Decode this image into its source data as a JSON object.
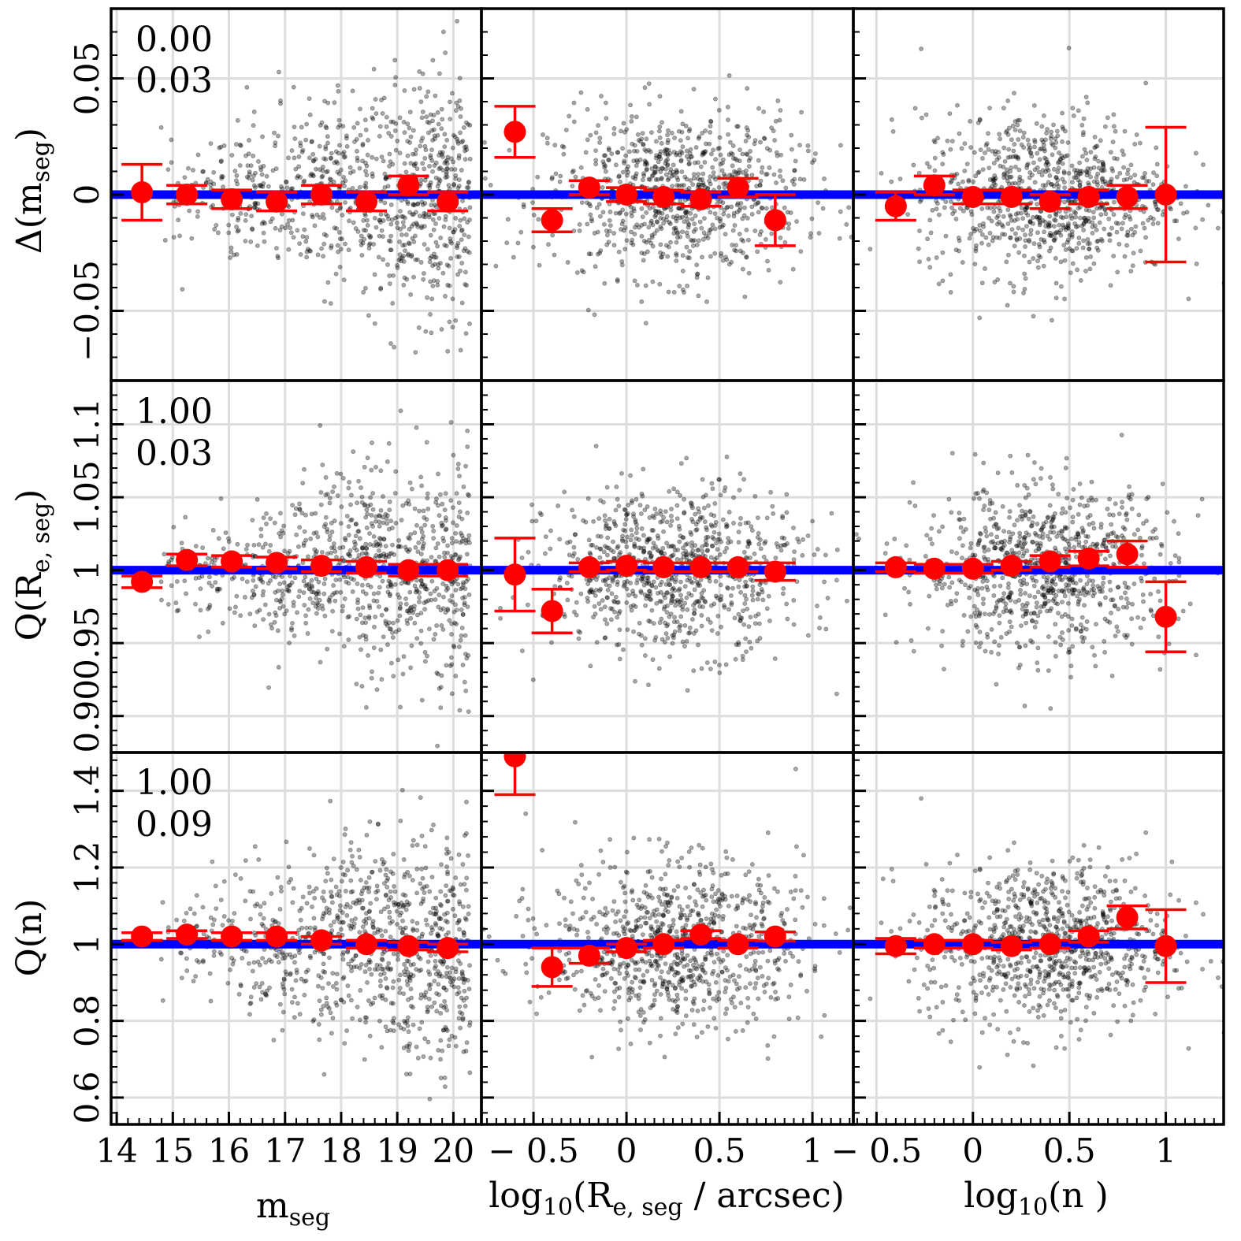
{
  "figure": {
    "panel_stats": [
      {
        "mean": "0.00",
        "sd": "0.03"
      },
      {
        "mean": "1.00",
        "sd": "0.03"
      },
      {
        "mean": "1.00",
        "sd": "0.09"
      }
    ],
    "x_axis_labels": [
      {
        "main": "m",
        "sub": "seg",
        "tail": ""
      },
      {
        "main": "log",
        "sub": "10",
        "tail": "(R",
        "sub2": "e, seg",
        "tail2": " / arcsec)"
      },
      {
        "main": "log",
        "sub": "10",
        "tail": "(n )"
      }
    ],
    "y_axis_labels": [
      {
        "main": "Δ(m",
        "sub": "seg",
        "tail": ")"
      },
      {
        "main": "Q(R",
        "sub": "e, seg",
        "tail": ")"
      },
      {
        "main": "Q(n)",
        "sub": "",
        "tail": ""
      }
    ],
    "colors": {
      "points": "#000000",
      "binned": "#ff0000",
      "reference": "#0000ff",
      "grid": "#dddddd"
    }
  },
  "chart_data": [
    {
      "type": "scatter",
      "row": 0,
      "col": 0,
      "xlabel": "m_seg",
      "ylabel": "Δ(m_seg)",
      "xlim": [
        13.9,
        20.5
      ],
      "ylim": [
        -0.08,
        0.08
      ],
      "xticks": [
        14,
        15,
        16,
        17,
        18,
        19,
        20
      ],
      "xticklabels": [
        "14",
        "15",
        "16",
        "17",
        "18",
        "19",
        "20"
      ],
      "yticks": [
        -0.05,
        0,
        0.05
      ],
      "yticklabels": [
        "−0.05",
        "0",
        "0.05"
      ],
      "reference": 0,
      "binned": [
        {
          "x": 14.45,
          "y": 0.001,
          "err": 0.012
        },
        {
          "x": 15.25,
          "y": 0.0,
          "err": 0.004
        },
        {
          "x": 16.05,
          "y": -0.002,
          "err": 0.004
        },
        {
          "x": 16.85,
          "y": -0.003,
          "err": 0.004
        },
        {
          "x": 17.65,
          "y": 0.0,
          "err": 0.004
        },
        {
          "x": 18.45,
          "y": -0.003,
          "err": 0.004
        },
        {
          "x": 19.2,
          "y": 0.004,
          "err": 0.004
        },
        {
          "x": 19.9,
          "y": -0.003,
          "err": 0.004
        }
      ]
    },
    {
      "type": "scatter",
      "row": 0,
      "col": 1,
      "xlabel": "log10(Re,seg / arcsec)",
      "ylabel": "Δ(m_seg)",
      "xlim": [
        -0.78,
        1.22
      ],
      "ylim": [
        -0.08,
        0.08
      ],
      "xticks": [
        -0.5,
        0,
        0.5,
        1
      ],
      "xticklabels": [
        "− 0.5",
        "0",
        "0.5",
        "1"
      ],
      "yticks": [
        -0.05,
        0,
        0.05
      ],
      "reference": 0,
      "binned": [
        {
          "x": -0.6,
          "y": 0.027,
          "err": 0.011
        },
        {
          "x": -0.4,
          "y": -0.011,
          "err": 0.005
        },
        {
          "x": -0.2,
          "y": 0.003,
          "err": 0.003
        },
        {
          "x": 0.0,
          "y": 0.0,
          "err": 0.003
        },
        {
          "x": 0.2,
          "y": -0.001,
          "err": 0.003
        },
        {
          "x": 0.4,
          "y": -0.002,
          "err": 0.003
        },
        {
          "x": 0.6,
          "y": 0.003,
          "err": 0.004
        },
        {
          "x": 0.8,
          "y": -0.011,
          "err": 0.011
        }
      ]
    },
    {
      "type": "scatter",
      "row": 0,
      "col": 2,
      "xlabel": "log10(n)",
      "ylabel": "Δ(m_seg)",
      "xlim": [
        -0.62,
        1.3
      ],
      "ylim": [
        -0.08,
        0.08
      ],
      "xticks": [
        -0.5,
        0,
        0.5,
        1
      ],
      "xticklabels": [
        "− 0.5",
        "0",
        "0.5",
        "1"
      ],
      "yticks": [
        -0.05,
        0,
        0.05
      ],
      "reference": 0,
      "binned": [
        {
          "x": -0.4,
          "y": -0.005,
          "err": 0.006
        },
        {
          "x": -0.2,
          "y": 0.004,
          "err": 0.004
        },
        {
          "x": 0.0,
          "y": -0.001,
          "err": 0.003
        },
        {
          "x": 0.2,
          "y": -0.001,
          "err": 0.003
        },
        {
          "x": 0.4,
          "y": -0.003,
          "err": 0.003
        },
        {
          "x": 0.6,
          "y": -0.001,
          "err": 0.003
        },
        {
          "x": 0.8,
          "y": -0.001,
          "err": 0.005
        },
        {
          "x": 1.0,
          "y": 0.0,
          "err": 0.029
        }
      ]
    },
    {
      "type": "scatter",
      "row": 1,
      "col": 0,
      "xlabel": "m_seg",
      "ylabel": "Q(Re,seg)",
      "xlim": [
        13.9,
        20.5
      ],
      "ylim": [
        0.875,
        1.13
      ],
      "xticks": [
        14,
        15,
        16,
        17,
        18,
        19,
        20
      ],
      "yticks": [
        0.9,
        0.95,
        1,
        1.05,
        1.1
      ],
      "yticklabels": [
        "0.90",
        "0.95",
        "1",
        "1.05",
        "1.1"
      ],
      "reference": 1,
      "binned": [
        {
          "x": 14.45,
          "y": 0.992,
          "err": 0.004
        },
        {
          "x": 15.25,
          "y": 1.007,
          "err": 0.004
        },
        {
          "x": 16.05,
          "y": 1.006,
          "err": 0.004
        },
        {
          "x": 16.85,
          "y": 1.005,
          "err": 0.004
        },
        {
          "x": 17.65,
          "y": 1.003,
          "err": 0.004
        },
        {
          "x": 18.45,
          "y": 1.002,
          "err": 0.004
        },
        {
          "x": 19.2,
          "y": 1.0,
          "err": 0.004
        },
        {
          "x": 19.9,
          "y": 1.0,
          "err": 0.004
        }
      ]
    },
    {
      "type": "scatter",
      "row": 1,
      "col": 1,
      "xlabel": "log10(Re,seg / arcsec)",
      "ylabel": "Q(Re,seg)",
      "xlim": [
        -0.78,
        1.22
      ],
      "ylim": [
        0.875,
        1.13
      ],
      "xticks": [
        -0.5,
        0,
        0.5,
        1
      ],
      "yticks": [
        0.9,
        0.95,
        1,
        1.05,
        1.1
      ],
      "reference": 1,
      "binned": [
        {
          "x": -0.6,
          "y": 0.997,
          "err": 0.025
        },
        {
          "x": -0.4,
          "y": 0.972,
          "err": 0.015
        },
        {
          "x": -0.2,
          "y": 1.002,
          "err": 0.003
        },
        {
          "x": 0.0,
          "y": 1.003,
          "err": 0.003
        },
        {
          "x": 0.2,
          "y": 1.002,
          "err": 0.003
        },
        {
          "x": 0.4,
          "y": 1.002,
          "err": 0.003
        },
        {
          "x": 0.6,
          "y": 1.002,
          "err": 0.003
        },
        {
          "x": 0.8,
          "y": 0.999,
          "err": 0.006
        }
      ]
    },
    {
      "type": "scatter",
      "row": 1,
      "col": 2,
      "xlabel": "log10(n)",
      "ylabel": "Q(Re,seg)",
      "xlim": [
        -0.62,
        1.3
      ],
      "ylim": [
        0.875,
        1.13
      ],
      "xticks": [
        -0.5,
        0,
        0.5,
        1
      ],
      "yticks": [
        0.9,
        0.95,
        1,
        1.05,
        1.1
      ],
      "reference": 1,
      "binned": [
        {
          "x": -0.4,
          "y": 1.002,
          "err": 0.003
        },
        {
          "x": -0.2,
          "y": 1.001,
          "err": 0.003
        },
        {
          "x": 0.0,
          "y": 1.001,
          "err": 0.003
        },
        {
          "x": 0.2,
          "y": 1.003,
          "err": 0.003
        },
        {
          "x": 0.4,
          "y": 1.006,
          "err": 0.004
        },
        {
          "x": 0.6,
          "y": 1.008,
          "err": 0.005
        },
        {
          "x": 0.8,
          "y": 1.011,
          "err": 0.009
        },
        {
          "x": 1.0,
          "y": 0.968,
          "err": 0.024
        }
      ]
    },
    {
      "type": "scatter",
      "row": 2,
      "col": 0,
      "xlabel": "m_seg",
      "ylabel": "Q(n)",
      "xlim": [
        13.9,
        20.5
      ],
      "ylim": [
        0.53,
        1.5
      ],
      "xticks": [
        14,
        15,
        16,
        17,
        18,
        19,
        20
      ],
      "yticks": [
        0.6,
        0.8,
        1,
        1.2,
        1.4
      ],
      "yticklabels": [
        "0.6",
        "0.8",
        "1",
        "1.2",
        "1.4"
      ],
      "reference": 1,
      "binned": [
        {
          "x": 14.45,
          "y": 1.02,
          "err": 0.01
        },
        {
          "x": 15.25,
          "y": 1.025,
          "err": 0.01
        },
        {
          "x": 16.05,
          "y": 1.02,
          "err": 0.01
        },
        {
          "x": 16.85,
          "y": 1.02,
          "err": 0.01
        },
        {
          "x": 17.65,
          "y": 1.01,
          "err": 0.01
        },
        {
          "x": 18.45,
          "y": 1.0,
          "err": 0.01
        },
        {
          "x": 19.2,
          "y": 0.995,
          "err": 0.01
        },
        {
          "x": 19.9,
          "y": 0.99,
          "err": 0.01
        }
      ]
    },
    {
      "type": "scatter",
      "row": 2,
      "col": 1,
      "xlabel": "log10(Re,seg / arcsec)",
      "ylabel": "Q(n)",
      "xlim": [
        -0.78,
        1.22
      ],
      "ylim": [
        0.53,
        1.5
      ],
      "xticks": [
        -0.5,
        0,
        0.5,
        1
      ],
      "yticks": [
        0.6,
        0.8,
        1,
        1.2,
        1.4
      ],
      "reference": 1,
      "binned": [
        {
          "x": -0.6,
          "y": 1.49,
          "err": 0.1
        },
        {
          "x": -0.4,
          "y": 0.94,
          "err": 0.05
        },
        {
          "x": -0.2,
          "y": 0.97,
          "err": 0.02
        },
        {
          "x": 0.0,
          "y": 0.99,
          "err": 0.01
        },
        {
          "x": 0.2,
          "y": 1.0,
          "err": 0.01
        },
        {
          "x": 0.4,
          "y": 1.025,
          "err": 0.01
        },
        {
          "x": 0.6,
          "y": 1.0,
          "err": 0.01
        },
        {
          "x": 0.8,
          "y": 1.02,
          "err": 0.012
        }
      ]
    },
    {
      "type": "scatter",
      "row": 2,
      "col": 2,
      "xlabel": "log10(n)",
      "ylabel": "Q(n)",
      "xlim": [
        -0.62,
        1.3
      ],
      "ylim": [
        0.53,
        1.5
      ],
      "xticks": [
        -0.5,
        0,
        0.5,
        1
      ],
      "yticks": [
        0.6,
        0.8,
        1,
        1.2,
        1.4
      ],
      "reference": 1,
      "binned": [
        {
          "x": -0.4,
          "y": 0.995,
          "err": 0.02
        },
        {
          "x": -0.2,
          "y": 1.0,
          "err": 0.01
        },
        {
          "x": 0.0,
          "y": 1.0,
          "err": 0.01
        },
        {
          "x": 0.2,
          "y": 0.995,
          "err": 0.01
        },
        {
          "x": 0.4,
          "y": 1.0,
          "err": 0.01
        },
        {
          "x": 0.6,
          "y": 1.02,
          "err": 0.015
        },
        {
          "x": 0.8,
          "y": 1.07,
          "err": 0.03
        },
        {
          "x": 1.0,
          "y": 0.995,
          "err": 0.095
        }
      ]
    }
  ]
}
